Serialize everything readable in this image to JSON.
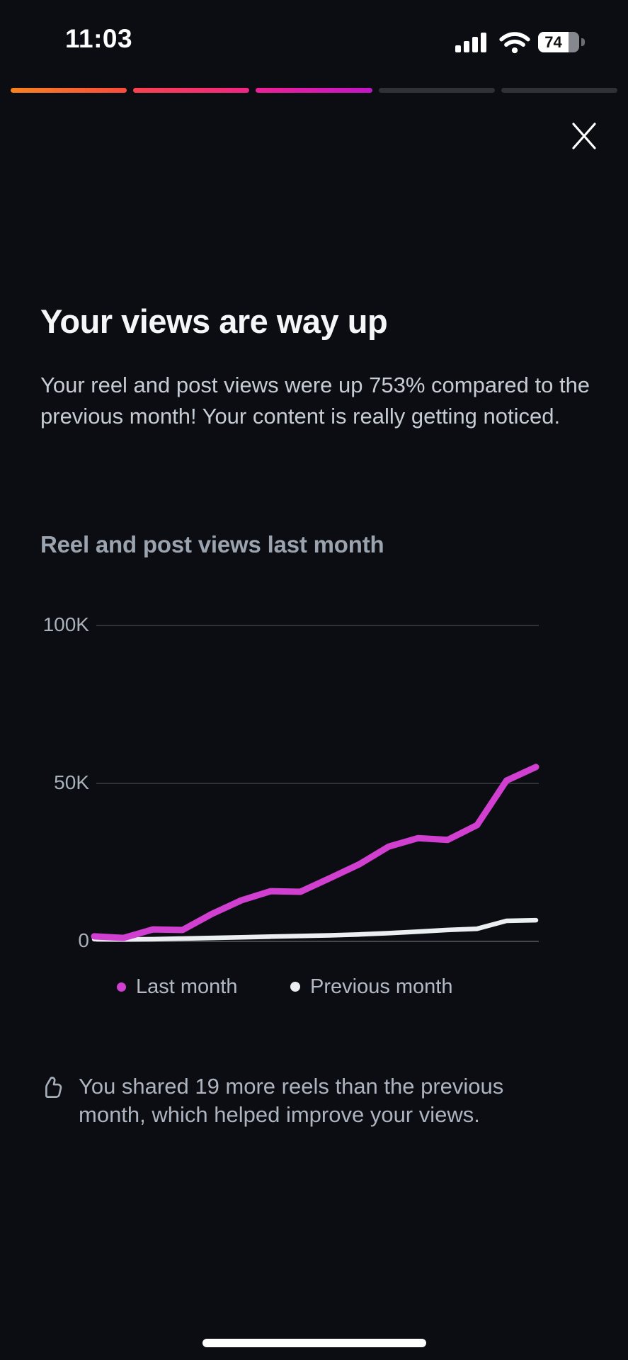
{
  "status_bar": {
    "time": "11:03",
    "battery_percent": "74"
  },
  "story_progress": {
    "segments": [
      {
        "filled": true,
        "gradient_from": "#f8821f",
        "gradient_to": "#f94b3e"
      },
      {
        "filled": true,
        "gradient_from": "#f8434e",
        "gradient_to": "#f22484"
      },
      {
        "filled": true,
        "gradient_from": "#ee2096",
        "gradient_to": "#c216c6"
      },
      {
        "filled": false,
        "gradient_from": "#2e3136",
        "gradient_to": "#2e3136"
      },
      {
        "filled": false,
        "gradient_from": "#2e3136",
        "gradient_to": "#2e3136"
      }
    ]
  },
  "header": {
    "title": "Your views are way up",
    "body": "Your reel and post views were up 753% compared to the previous month! Your content is really getting noticed."
  },
  "chart_section": {
    "heading": "Reel and post views last month"
  },
  "chart_data": {
    "type": "line",
    "title": "Reel and post views last month",
    "xlabel": "",
    "ylabel": "",
    "ylim": [
      0,
      100000
    ],
    "grid": "horizontal",
    "legend_position": "bottom",
    "yticks": [
      {
        "label": "100K",
        "value": 100000
      },
      {
        "label": "50K",
        "value": 50000
      },
      {
        "label": "0",
        "value": 0
      }
    ],
    "series": [
      {
        "name": "Last month",
        "color": "#d13fd1",
        "stroke_width": 9,
        "values": [
          1600,
          1100,
          3800,
          3600,
          8700,
          13000,
          15900,
          15700,
          20000,
          24400,
          30000,
          32700,
          32100,
          36800,
          50900,
          55200
        ]
      },
      {
        "name": "Previous month",
        "color": "#eceff1",
        "stroke_width": 6.5,
        "values": [
          700,
          600,
          700,
          900,
          1100,
          1300,
          1500,
          1700,
          1900,
          2200,
          2600,
          3100,
          3600,
          4000,
          6500,
          6700
        ]
      }
    ]
  },
  "legend": {
    "last_month": "Last month",
    "previous_month": "Previous month"
  },
  "note": {
    "text": "You shared 19 more reels than the previous month, which helped improve your views."
  },
  "colors": {
    "background": "#0b0d12",
    "gridline": "#2f3238",
    "baseline": "#43464c",
    "last_month_line": "#d13fd1",
    "previous_month_line": "#eceff1"
  }
}
